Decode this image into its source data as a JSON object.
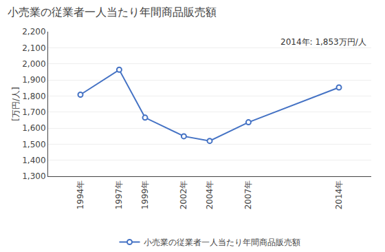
{
  "chart_data": {
    "type": "line",
    "title": "小売業の従業者一人当たり年間商品販売額",
    "y_label": "[万円/人]",
    "annotation": "2014年: 1,853万円/人",
    "x": [
      1994,
      1997,
      1999,
      2002,
      2004,
      2007,
      2014
    ],
    "series": [
      {
        "name": "小売業の従業者一人当たり年間商品販売額",
        "color": "#4472C4",
        "marker": "circle",
        "values": [
          1808,
          1963,
          1665,
          1549,
          1520,
          1636,
          1853
        ]
      }
    ],
    "xlim": [
      1991.5,
      2016.5
    ],
    "xticks": [
      {
        "value": 1994,
        "label": "1994年"
      },
      {
        "value": 1997,
        "label": "1997年"
      },
      {
        "value": 1999,
        "label": "1999年"
      },
      {
        "value": 2002,
        "label": "2002年"
      },
      {
        "value": 2004,
        "label": "2004年"
      },
      {
        "value": 2007,
        "label": "2007年"
      },
      {
        "value": 2014,
        "label": "2014年"
      }
    ],
    "ylim": [
      1300,
      2200
    ],
    "yticks": [
      {
        "value": 1300,
        "label": "1,300"
      },
      {
        "value": 1400,
        "label": "1,400"
      },
      {
        "value": 1500,
        "label": "1,500"
      },
      {
        "value": 1600,
        "label": "1,600"
      },
      {
        "value": 1700,
        "label": "1,700"
      },
      {
        "value": 1800,
        "label": "1,800"
      },
      {
        "value": 1900,
        "label": "1,900"
      },
      {
        "value": 2000,
        "label": "2,000"
      },
      {
        "value": 2100,
        "label": "2,100"
      },
      {
        "value": 2200,
        "label": "2,200"
      }
    ],
    "grid": true,
    "legend": "bottom"
  }
}
